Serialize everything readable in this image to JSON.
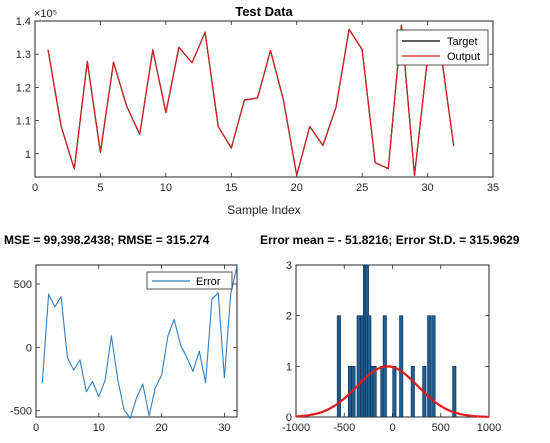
{
  "stats": {
    "left": "MSE = 99,398.2438; RMSE = 315.274",
    "right": "Error mean = - 51.8216; Error St.D. = 315.9629"
  },
  "chart_data": [
    {
      "type": "line",
      "title": "Test Data",
      "xlabel": "Sample Index",
      "ylabel": "",
      "y_exponent_label": "×10⁵",
      "xlim": [
        0,
        35
      ],
      "ylim": [
        0.93,
        1.4
      ],
      "xticks": [
        0,
        5,
        10,
        15,
        20,
        25,
        30,
        35
      ],
      "yticks": [
        1,
        1.1,
        1.2,
        1.3,
        1.4
      ],
      "legend": "top-right",
      "x": [
        1,
        2,
        3,
        4,
        5,
        6,
        7,
        8,
        9,
        10,
        11,
        12,
        13,
        14,
        15,
        16,
        17,
        18,
        19,
        20,
        21,
        22,
        23,
        24,
        25,
        26,
        27,
        28,
        29,
        30,
        31,
        32
      ],
      "series": [
        {
          "name": "Target",
          "color": "#000000",
          "values": [
            1.312,
            1.082,
            0.954,
            1.278,
            1.004,
            1.276,
            1.144,
            1.058,
            1.313,
            1.124,
            1.321,
            1.274,
            1.366,
            1.082,
            1.017,
            1.162,
            1.168,
            1.311,
            1.16,
            0.935,
            1.082,
            1.025,
            1.14,
            1.375,
            1.314,
            0.973,
            0.955,
            1.387,
            0.935,
            1.29,
            1.31,
            1.024
          ]
        },
        {
          "name": "Output",
          "color": "#d42020",
          "values": [
            1.312,
            1.082,
            0.954,
            1.278,
            1.004,
            1.276,
            1.144,
            1.058,
            1.313,
            1.124,
            1.321,
            1.274,
            1.366,
            1.082,
            1.017,
            1.162,
            1.168,
            1.311,
            1.16,
            0.935,
            1.082,
            1.025,
            1.14,
            1.375,
            1.314,
            0.973,
            0.955,
            1.387,
            0.935,
            1.29,
            1.31,
            1.024
          ]
        }
      ]
    },
    {
      "type": "line",
      "title": "",
      "xlabel": "",
      "ylabel": "",
      "xlim": [
        0,
        32
      ],
      "ylim": [
        -550,
        650
      ],
      "xticks": [
        0,
        10,
        20,
        30
      ],
      "yticks": [
        -500,
        0,
        500
      ],
      "legend": "top-right",
      "x": [
        1,
        2,
        3,
        4,
        5,
        6,
        7,
        8,
        9,
        10,
        11,
        12,
        13,
        14,
        15,
        16,
        17,
        18,
        19,
        20,
        21,
        22,
        23,
        24,
        25,
        26,
        27,
        28,
        29,
        30,
        31,
        32
      ],
      "series": [
        {
          "name": "Error",
          "color": "#2f7fc1",
          "values": [
            -280,
            420,
            320,
            400,
            -80,
            -180,
            -100,
            -350,
            -270,
            -390,
            -260,
            90,
            -250,
            -490,
            -560,
            -400,
            -290,
            -540,
            -320,
            -220,
            90,
            220,
            20,
            -80,
            -190,
            -30,
            -280,
            380,
            430,
            -240,
            420,
            640
          ]
        }
      ]
    },
    {
      "type": "bar",
      "title": "",
      "xlabel": "",
      "ylabel": "",
      "xlim": [
        -1000,
        1000
      ],
      "ylim": [
        0,
        3
      ],
      "xticks": [
        -1000,
        -500,
        0,
        500,
        1000
      ],
      "yticks": [
        0,
        1,
        2,
        3
      ],
      "bar_color": "#1f5f96",
      "curve_color": "#e31a1c",
      "bins": [
        {
          "x": -555,
          "count": 2
        },
        {
          "x": -440,
          "count": 1
        },
        {
          "x": -405,
          "count": 1
        },
        {
          "x": -350,
          "count": 2
        },
        {
          "x": -310,
          "count": 2
        },
        {
          "x": -285,
          "count": 3
        },
        {
          "x": -265,
          "count": 3
        },
        {
          "x": -240,
          "count": 2
        },
        {
          "x": -210,
          "count": 1
        },
        {
          "x": -185,
          "count": 1
        },
        {
          "x": -105,
          "count": 1
        },
        {
          "x": -80,
          "count": 2
        },
        {
          "x": 20,
          "count": 1
        },
        {
          "x": 90,
          "count": 2
        },
        {
          "x": 210,
          "count": 1
        },
        {
          "x": 330,
          "count": 1
        },
        {
          "x": 380,
          "count": 2
        },
        {
          "x": 425,
          "count": 2
        },
        {
          "x": 640,
          "count": 1
        }
      ],
      "normal_fit": {
        "mean": -51.8216,
        "std": 315.9629,
        "peak": 1
      }
    }
  ]
}
